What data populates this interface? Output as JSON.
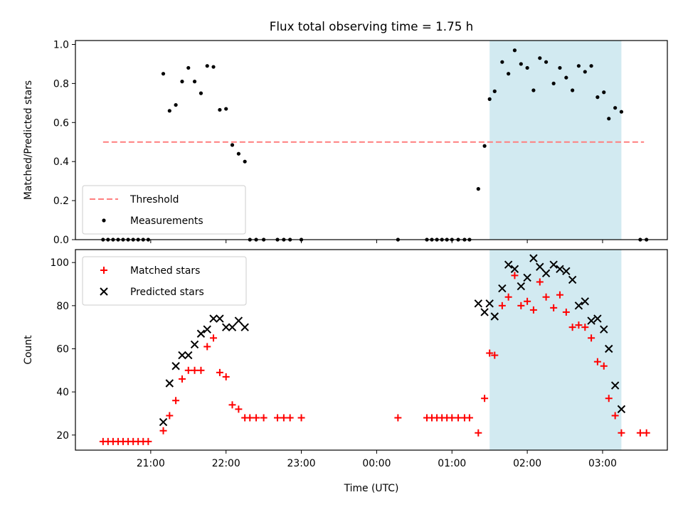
{
  "chart_data": {
    "title": "Flux total observing time = 1.75 h",
    "xlabel": "Time (UTC)",
    "x_ticks": [
      "21:00",
      "22:00",
      "23:00",
      "00:00",
      "01:00",
      "02:00",
      "03:00"
    ],
    "x_tick_hours": [
      21,
      22,
      23,
      24,
      25,
      26,
      27
    ],
    "xlim_hours": [
      20.0,
      27.86
    ],
    "highlight_span_hours": [
      25.5,
      27.25
    ],
    "colors": {
      "highlight": "#add8e6",
      "threshold": "#ff7f7f",
      "measurements": "#000000",
      "matched": "#ff0000",
      "predicted": "#000000"
    },
    "panels": [
      {
        "type": "scatter",
        "ylabel": "Matched/Predicted stars",
        "ylim": [
          0.0,
          1.02
        ],
        "y_ticks": [
          "0.0",
          "0.2",
          "0.4",
          "0.6",
          "0.8",
          "1.0"
        ],
        "y_tick_values": [
          0.0,
          0.2,
          0.4,
          0.6,
          0.8,
          1.0
        ],
        "legend_position": "lower-left",
        "threshold": {
          "name": "Threshold",
          "value": 0.5,
          "x_range_hours": [
            20.367,
            27.55
          ]
        },
        "series": [
          {
            "name": "Measurements",
            "marker": "dot",
            "x_hours": [
              20.367,
              20.433,
              20.5,
              20.567,
              20.633,
              20.7,
              20.767,
              20.833,
              20.9,
              20.967,
              21.167,
              21.25,
              21.333,
              21.417,
              21.5,
              21.583,
              21.667,
              21.75,
              21.833,
              21.917,
              22.0,
              22.083,
              22.167,
              22.25,
              22.317,
              22.4,
              22.5,
              22.683,
              22.767,
              22.85,
              23.0,
              24.283,
              24.667,
              24.733,
              24.8,
              24.867,
              24.933,
              25.0,
              25.083,
              25.167,
              25.233,
              25.35,
              25.433,
              25.5,
              25.567,
              25.667,
              25.75,
              25.833,
              25.917,
              26.0,
              26.083,
              26.167,
              26.25,
              26.35,
              26.433,
              26.517,
              26.6,
              26.683,
              26.767,
              26.85,
              26.933,
              27.017,
              27.083,
              27.167,
              27.25,
              27.5,
              27.583
            ],
            "y": [
              0,
              0,
              0,
              0,
              0,
              0,
              0,
              0,
              0,
              0,
              0.85,
              0.66,
              0.69,
              0.81,
              0.88,
              0.81,
              0.75,
              0.89,
              0.885,
              0.665,
              0.67,
              0.485,
              0.44,
              0.4,
              0,
              0,
              0,
              0,
              0,
              0,
              0,
              0,
              0,
              0,
              0,
              0,
              0,
              0,
              0,
              0,
              0,
              0.26,
              0.48,
              0.72,
              0.76,
              0.91,
              0.85,
              0.97,
              0.9,
              0.88,
              0.765,
              0.93,
              0.91,
              0.8,
              0.88,
              0.83,
              0.765,
              0.89,
              0.86,
              0.89,
              0.73,
              0.755,
              0.62,
              0.675,
              0.655,
              0,
              0
            ]
          }
        ]
      },
      {
        "type": "scatter",
        "ylabel": "Count",
        "ylim": [
          13.0,
          106.0
        ],
        "y_ticks": [
          "20",
          "40",
          "60",
          "80",
          "100"
        ],
        "y_tick_values": [
          20,
          40,
          60,
          80,
          100
        ],
        "legend_position": "upper-left",
        "series": [
          {
            "name": "Matched stars",
            "marker": "plus",
            "x_hours": [
              20.367,
              20.433,
              20.5,
              20.567,
              20.633,
              20.7,
              20.767,
              20.833,
              20.9,
              20.967,
              21.167,
              21.25,
              21.333,
              21.417,
              21.5,
              21.583,
              21.667,
              21.75,
              21.833,
              21.917,
              22.0,
              22.083,
              22.167,
              22.25,
              22.317,
              22.4,
              22.5,
              22.683,
              22.767,
              22.85,
              23.0,
              24.283,
              24.667,
              24.733,
              24.8,
              24.867,
              24.933,
              25.0,
              25.083,
              25.167,
              25.233,
              25.35,
              25.433,
              25.5,
              25.567,
              25.667,
              25.75,
              25.833,
              25.917,
              26.0,
              26.083,
              26.167,
              26.25,
              26.35,
              26.433,
              26.517,
              26.6,
              26.683,
              26.767,
              26.85,
              26.933,
              27.017,
              27.083,
              27.167,
              27.25,
              27.5,
              27.583
            ],
            "y": [
              17,
              17,
              17,
              17,
              17,
              17,
              17,
              17,
              17,
              17,
              22,
              29,
              36,
              46,
              50,
              50,
              50,
              61,
              65,
              49,
              47,
              34,
              32,
              28,
              28,
              28,
              28,
              28,
              28,
              28,
              28,
              28,
              28,
              28,
              28,
              28,
              28,
              28,
              28,
              28,
              28,
              21,
              37,
              58,
              57,
              80,
              84,
              94,
              80,
              82,
              78,
              91,
              84,
              79,
              85,
              77,
              70,
              71,
              70,
              65,
              54,
              52,
              37,
              29,
              21,
              21,
              21
            ]
          },
          {
            "name": "Predicted stars",
            "marker": "x",
            "x_hours": [
              21.167,
              21.25,
              21.333,
              21.417,
              21.5,
              21.583,
              21.667,
              21.75,
              21.833,
              21.917,
              22.0,
              22.083,
              22.167,
              22.25,
              25.35,
              25.433,
              25.5,
              25.567,
              25.667,
              25.75,
              25.833,
              25.917,
              26.0,
              26.083,
              26.167,
              26.25,
              26.35,
              26.433,
              26.517,
              26.6,
              26.683,
              26.767,
              26.85,
              26.933,
              27.017,
              27.083,
              27.167,
              27.25
            ],
            "y": [
              26,
              44,
              52,
              57,
              57,
              62,
              67,
              69,
              74,
              74,
              70,
              70,
              73,
              70,
              81,
              77,
              81,
              75,
              88,
              99,
              97,
              89,
              93,
              102,
              98,
              95,
              99,
              97,
              96,
              92,
              80,
              82,
              73,
              74,
              69,
              60,
              43,
              32
            ]
          }
        ]
      }
    ]
  }
}
